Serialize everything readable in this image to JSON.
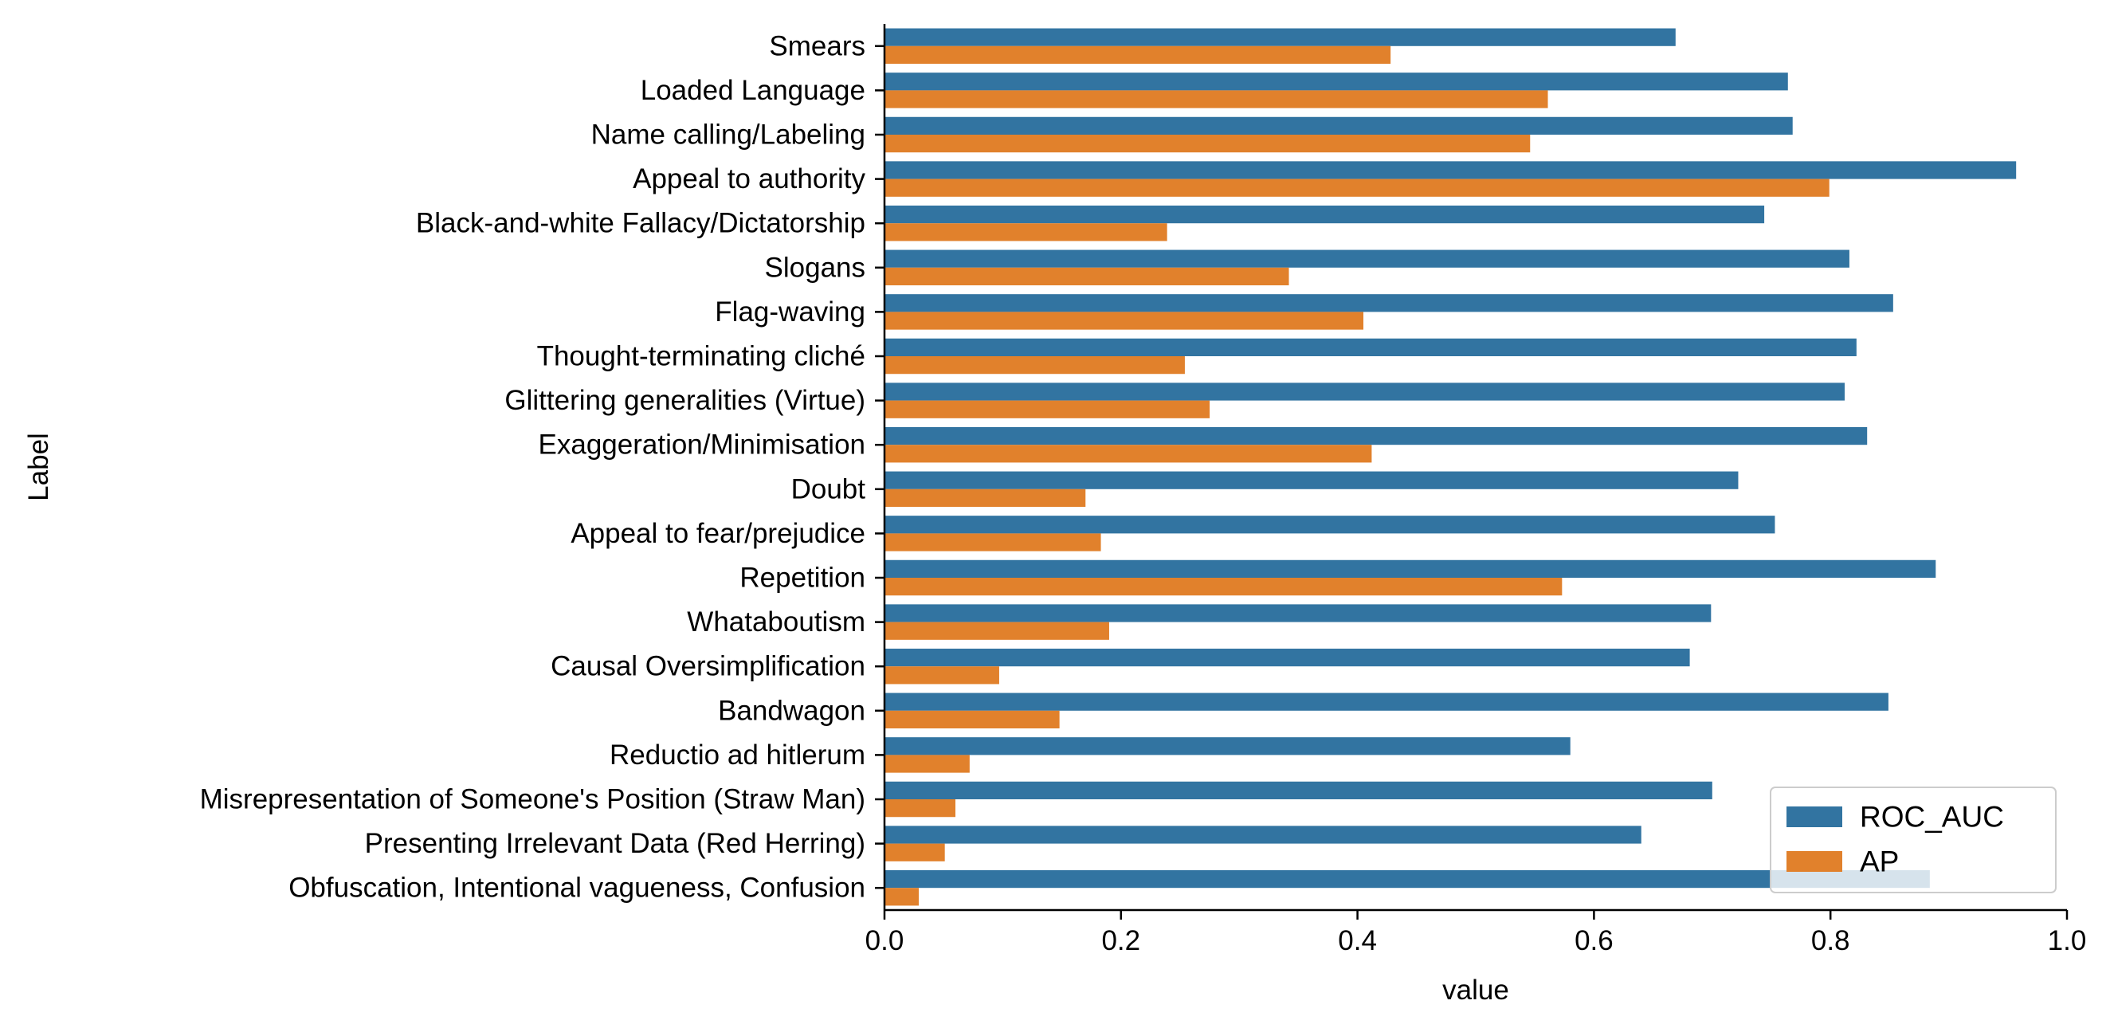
{
  "chart_data": {
    "type": "bar",
    "orientation": "horizontal",
    "title": "",
    "xlabel": "value",
    "ylabel": "Label",
    "xlim": [
      0.0,
      1.0
    ],
    "x_ticks": [
      "0.0",
      "0.2",
      "0.4",
      "0.6",
      "0.8",
      "1.0"
    ],
    "grid": false,
    "legend_position": "lower-right",
    "categories": [
      "Smears",
      "Loaded Language",
      "Name calling/Labeling",
      "Appeal to authority",
      "Black-and-white Fallacy/Dictatorship",
      "Slogans",
      "Flag-waving",
      "Thought-terminating cliché",
      "Glittering generalities (Virtue)",
      "Exaggeration/Minimisation",
      "Doubt",
      "Appeal to fear/prejudice",
      "Repetition",
      "Whataboutism",
      "Causal Oversimplification",
      "Bandwagon",
      "Reductio ad hitlerum",
      "Misrepresentation of Someone's Position (Straw Man)",
      "Presenting Irrelevant Data (Red Herring)",
      "Obfuscation, Intentional vagueness, Confusion"
    ],
    "series": [
      {
        "name": "ROC_AUC",
        "color": "#3274a1",
        "values": [
          0.669,
          0.764,
          0.768,
          0.957,
          0.744,
          0.816,
          0.853,
          0.822,
          0.812,
          0.831,
          0.722,
          0.753,
          0.889,
          0.699,
          0.681,
          0.849,
          0.58,
          0.7,
          0.64,
          0.884
        ]
      },
      {
        "name": "AP",
        "color": "#e1812c",
        "values": [
          0.428,
          0.561,
          0.546,
          0.799,
          0.239,
          0.342,
          0.405,
          0.254,
          0.275,
          0.412,
          0.17,
          0.183,
          0.573,
          0.19,
          0.097,
          0.148,
          0.072,
          0.06,
          0.051,
          0.029
        ]
      }
    ]
  }
}
